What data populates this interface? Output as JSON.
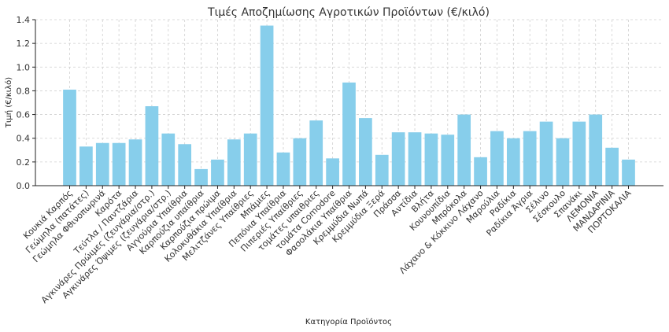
{
  "chart_data": {
    "type": "bar",
    "title": "Τιμές Αποζημίωσης Αγροτικών Προϊόντων (€/κιλό)",
    "xlabel": "Κατηγορία Προϊόντος",
    "ylabel": "Τιμή (€/κιλό)",
    "ylim": [
      0,
      1.4
    ],
    "yticks": [
      "0.0",
      "0.2",
      "0.4",
      "0.6",
      "0.8",
      "1.0",
      "1.2",
      "1.4"
    ],
    "grid": true,
    "bar_color": "#87ceeb",
    "categories": [
      "Κουκιά Καρπός",
      "Γεώμηλα (πατάτες)",
      "Γεώμηλα Φθινοπωρινά",
      "Καρότα",
      "Τεύτλα / Παντζάρια",
      "Αγκινάρες Πρώιμες (ζευγάρια/στρ.)",
      "Αγκινάρες Όψιμες (ζευγάρια/στρ.)",
      "Αγγούρια Υπαίθρια",
      "Καρπούζια υπαίθρια",
      "Καρπούζια πρώιμα",
      "Κολοκυθάκια Υπαίθρια",
      "Μελιτζάνες Υπαίθριες",
      "Μπάμιες",
      "Πεπόνια Υπαίθρια",
      "Πιπεριές Υπαίθριες",
      "τομάτες υπαιθριες",
      "τομάτα Comodore",
      "Φασολάκια Υπαίθρια",
      "Κρεμμύδια Νωπά",
      "Κρεμμύδια Ξερά",
      "Πράσσα",
      "Αντίδια",
      "Βλήτα",
      "Κουνουπίδια",
      "Μπρόκολα",
      "Λάχανο & Κόκκινο Λάχανο",
      "Μαρούλια",
      "Ραδίκια",
      "Ραδίκια Άγρια",
      "Σέλινο",
      "Σέσκουλο",
      "Σπανάκι",
      "ΛΕΜΟΝΙΑ",
      "ΜΑΝΔΑΡΙΝΙΑ",
      "ΠΟΡΤΟΚΑΛΙΑ"
    ],
    "values": [
      0.81,
      0.33,
      0.36,
      0.36,
      0.39,
      0.67,
      0.44,
      0.35,
      0.14,
      0.22,
      0.39,
      0.44,
      1.35,
      0.28,
      0.4,
      0.55,
      0.23,
      0.87,
      0.57,
      0.26,
      0.45,
      0.45,
      0.44,
      0.43,
      0.6,
      0.24,
      0.46,
      0.4,
      0.46,
      0.54,
      0.4,
      0.54,
      0.6,
      0.32,
      0.22
    ]
  }
}
